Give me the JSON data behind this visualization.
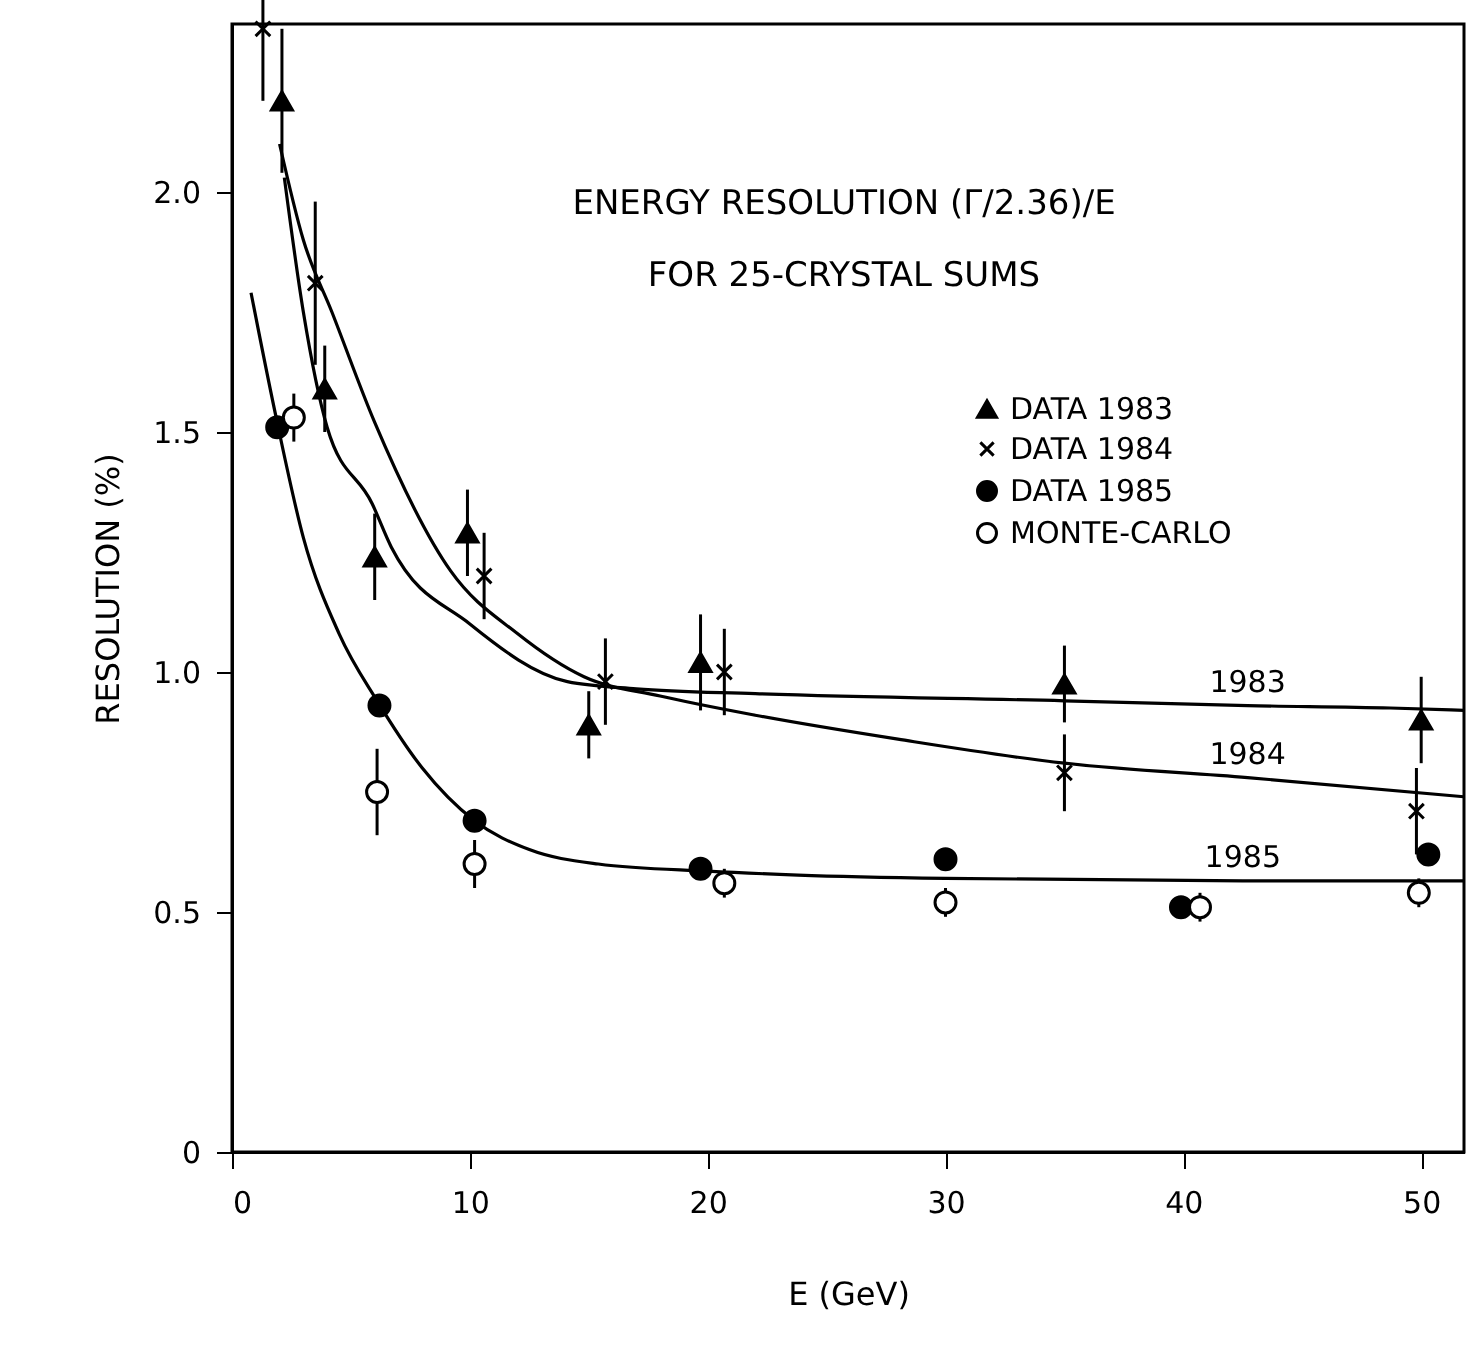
{
  "chart_data": {
    "type": "scatter",
    "title": "ENERGY RESOLUTION (Γ/2.36)/E",
    "subtitle": "FOR 25-CRYSTAL SUMS",
    "xlabel": "E (GeV)",
    "ylabel": "RESOLUTION (%)",
    "xlim": [
      0,
      51.8
    ],
    "xticks": [
      0,
      10,
      20,
      30,
      40,
      50
    ],
    "ylim": [
      0,
      2.35
    ],
    "yticks": [
      0,
      0.5,
      {
        "value": 1,
        "label": "1.0"
      },
      {
        "value": 1.5,
        "label": "1.5"
      },
      {
        "value": 2,
        "label": "2.0"
      }
    ],
    "grid": false,
    "legend": "top right",
    "series": [
      {
        "name": "DATA 1983",
        "color": "#000000",
        "marker": "triangle",
        "x": [
          2.1,
          3.9,
          6.0,
          9.9,
          15.0,
          19.7,
          35.0,
          50.0
        ],
        "values": [
          2.19,
          1.59,
          1.24,
          1.29,
          0.89,
          1.02,
          0.975,
          0.9
        ],
        "errors": [
          0.15,
          0.09,
          0.09,
          0.09,
          0.07,
          0.1,
          0.08,
          0.09
        ]
      },
      {
        "name": "DATA 1984",
        "color": "#000000",
        "marker": "cross",
        "x": [
          1.3,
          3.5,
          10.6,
          15.7,
          20.7,
          35.0,
          49.8
        ],
        "values": [
          2.34,
          1.81,
          1.2,
          0.98,
          1.0,
          0.79,
          0.71
        ],
        "errors": [
          0.15,
          0.17,
          0.09,
          0.09,
          0.09,
          0.08,
          0.09
        ]
      },
      {
        "name": "DATA 1985",
        "color": "#000000",
        "marker": "circle",
        "x": [
          1.9,
          6.2,
          10.2,
          19.7,
          30.0,
          39.9,
          50.3
        ],
        "values": [
          1.51,
          0.93,
          0.69,
          0.59,
          0.61,
          0.51,
          0.62
        ]
      },
      {
        "name": "MONTE-CARLO",
        "color": "#ffffff",
        "marker": "circle",
        "x": [
          2.6,
          6.1,
          10.2,
          20.7,
          30.0,
          40.7,
          49.9
        ],
        "values": [
          1.53,
          0.75,
          0.6,
          0.56,
          0.52,
          0.51,
          0.54
        ],
        "errors": [
          0.05,
          0.09,
          0.05,
          0.03,
          0.03,
          0.03,
          0.03
        ]
      },
      {
        "type": "line",
        "name": "1983",
        "color": "#000000",
        "x": [
          2.2,
          3,
          4,
          5.9,
          6.7,
          10,
          14.1,
          17,
          22,
          35,
          42.7,
          48.7,
          51.8
        ],
        "values": [
          2.03,
          1.75,
          1.51,
          1.35,
          1.26,
          1.1,
          0.98,
          0.965,
          0.955,
          0.94,
          0.93,
          0.925,
          0.92
        ]
      },
      {
        "type": "line",
        "name": "1984",
        "color": "#000000",
        "x": [
          2,
          3,
          4.2,
          6,
          9.2,
          12,
          14.8,
          18,
          22,
          28,
          35,
          42.7,
          51.8
        ],
        "values": [
          2.1,
          1.9,
          1.75,
          1.52,
          1.21,
          1.08,
          0.99,
          0.95,
          0.91,
          0.86,
          0.81,
          0.78,
          0.74
        ]
      },
      {
        "type": "line",
        "name": "1985",
        "color": "#000000",
        "x": [
          0.8,
          1.9,
          3,
          4.5,
          6.1,
          8,
          10.2,
          12.5,
          15.4,
          20,
          23.8,
          30,
          42.5,
          51.8
        ],
        "values": [
          1.79,
          1.52,
          1.28,
          1.08,
          0.94,
          0.8,
          0.69,
          0.63,
          0.6,
          0.585,
          0.577,
          0.57,
          0.565,
          0.565
        ]
      }
    ]
  }
}
